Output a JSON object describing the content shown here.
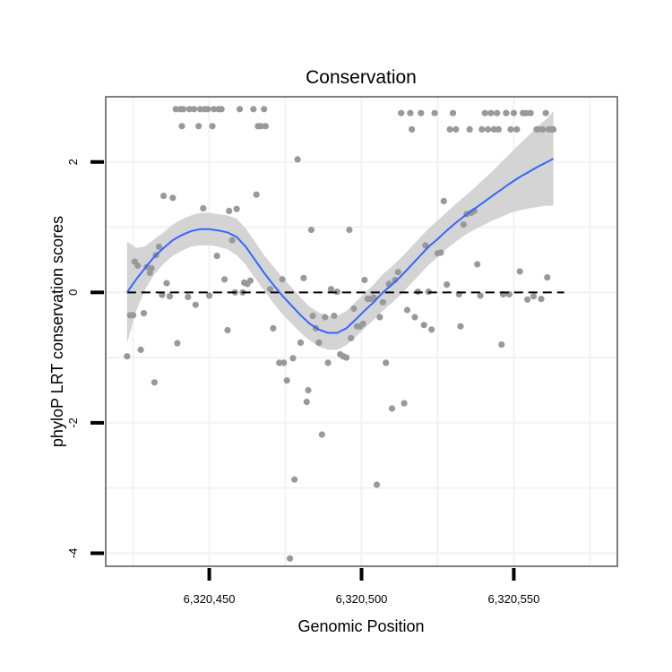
{
  "chart_data": {
    "type": "scatter",
    "title": "Conservation",
    "xlabel": "Genomic Position",
    "ylabel": "phyloP LRT conservation scores",
    "xlim": [
      6320416,
      6320584
    ],
    "ylim": [
      -4.2,
      3.0
    ],
    "x_ticks": [
      6320450,
      6320500,
      6320550
    ],
    "x_tick_labels": [
      "6,320,450",
      "6,320,500",
      "6,320,550"
    ],
    "y_ticks": [
      -4,
      -2,
      0,
      2
    ],
    "y_tick_labels": [
      "-4",
      "-2",
      "0",
      "2"
    ],
    "reference_line": {
      "y": 0,
      "style": "dashed"
    },
    "grid": true,
    "colors": {
      "points": "#999999",
      "smooth_line": "#3366ff",
      "confidence_band": "#d4d4d4",
      "frame": "#7f7f7f",
      "grid": "#f2f2f2"
    },
    "points": [
      {
        "x": 6320423,
        "y": -0.98
      },
      {
        "x": 6320424,
        "y": -0.35
      },
      {
        "x": 6320425,
        "y": -0.35
      },
      {
        "x": 6320425.5,
        "y": 0.47
      },
      {
        "x": 6320426.5,
        "y": 0.41
      },
      {
        "x": 6320427.5,
        "y": -0.88
      },
      {
        "x": 6320428.5,
        "y": -0.32
      },
      {
        "x": 6320429.5,
        "y": 0.39
      },
      {
        "x": 6320430.5,
        "y": 0.3
      },
      {
        "x": 6320431,
        "y": 0.37
      },
      {
        "x": 6320432,
        "y": -1.38
      },
      {
        "x": 6320432.5,
        "y": 0.57
      },
      {
        "x": 6320433.5,
        "y": 0.7
      },
      {
        "x": 6320434.5,
        "y": -0.04
      },
      {
        "x": 6320435,
        "y": 1.48
      },
      {
        "x": 6320436,
        "y": 0.14
      },
      {
        "x": 6320437,
        "y": -0.06
      },
      {
        "x": 6320438,
        "y": 1.45
      },
      {
        "x": 6320439,
        "y": 2.81
      },
      {
        "x": 6320439.5,
        "y": -0.78
      },
      {
        "x": 6320440.5,
        "y": 2.81
      },
      {
        "x": 6320441,
        "y": 2.55
      },
      {
        "x": 6320441.5,
        "y": 2.81
      },
      {
        "x": 6320443,
        "y": -0.07
      },
      {
        "x": 6320443.5,
        "y": 2.81
      },
      {
        "x": 6320445,
        "y": 2.81
      },
      {
        "x": 6320445.5,
        "y": -0.19
      },
      {
        "x": 6320446.5,
        "y": 2.55
      },
      {
        "x": 6320447,
        "y": 2.81
      },
      {
        "x": 6320448,
        "y": 1.29
      },
      {
        "x": 6320448.5,
        "y": 2.81
      },
      {
        "x": 6320449.5,
        "y": 2.81
      },
      {
        "x": 6320450,
        "y": -0.05
      },
      {
        "x": 6320451,
        "y": 2.55
      },
      {
        "x": 6320451.5,
        "y": 2.81
      },
      {
        "x": 6320452.5,
        "y": 0.56
      },
      {
        "x": 6320453,
        "y": 2.81
      },
      {
        "x": 6320454,
        "y": 2.81
      },
      {
        "x": 6320455,
        "y": 0.2
      },
      {
        "x": 6320456,
        "y": -0.58
      },
      {
        "x": 6320456.5,
        "y": 1.25
      },
      {
        "x": 6320457.5,
        "y": 0.8
      },
      {
        "x": 6320458.5,
        "y": 0.0
      },
      {
        "x": 6320459,
        "y": 1.28
      },
      {
        "x": 6320460,
        "y": 2.81
      },
      {
        "x": 6320461,
        "y": 0.0
      },
      {
        "x": 6320461.5,
        "y": 0.15
      },
      {
        "x": 6320462.5,
        "y": 0.13
      },
      {
        "x": 6320463.5,
        "y": 0.18
      },
      {
        "x": 6320464.5,
        "y": 2.81
      },
      {
        "x": 6320465.5,
        "y": 1.5
      },
      {
        "x": 6320466,
        "y": 2.55
      },
      {
        "x": 6320467,
        "y": 2.55
      },
      {
        "x": 6320468,
        "y": 2.81
      },
      {
        "x": 6320468.5,
        "y": 2.55
      },
      {
        "x": 6320470,
        "y": 0.05
      },
      {
        "x": 6320471,
        "y": -0.55
      },
      {
        "x": 6320473,
        "y": -1.08
      },
      {
        "x": 6320474,
        "y": 0.2
      },
      {
        "x": 6320474.5,
        "y": -1.08
      },
      {
        "x": 6320475.5,
        "y": -1.35
      },
      {
        "x": 6320476.5,
        "y": -4.08
      },
      {
        "x": 6320477.5,
        "y": -1.01
      },
      {
        "x": 6320478,
        "y": -2.87
      },
      {
        "x": 6320479,
        "y": 2.04
      },
      {
        "x": 6320480,
        "y": -0.77
      },
      {
        "x": 6320481,
        "y": 0.22
      },
      {
        "x": 6320482,
        "y": -1.68
      },
      {
        "x": 6320482.5,
        "y": -1.5
      },
      {
        "x": 6320483.5,
        "y": 0.96
      },
      {
        "x": 6320484,
        "y": -0.36
      },
      {
        "x": 6320485,
        "y": -0.55
      },
      {
        "x": 6320486,
        "y": -0.77
      },
      {
        "x": 6320487,
        "y": -2.18
      },
      {
        "x": 6320488,
        "y": -0.38
      },
      {
        "x": 6320489,
        "y": -1.08
      },
      {
        "x": 6320490,
        "y": 0.05
      },
      {
        "x": 6320491,
        "y": -0.36
      },
      {
        "x": 6320492,
        "y": 0.01
      },
      {
        "x": 6320493,
        "y": -0.95
      },
      {
        "x": 6320494,
        "y": -0.98
      },
      {
        "x": 6320495,
        "y": -1.0
      },
      {
        "x": 6320496,
        "y": 0.96
      },
      {
        "x": 6320496.5,
        "y": -0.7
      },
      {
        "x": 6320497.5,
        "y": -0.25
      },
      {
        "x": 6320498.5,
        "y": -0.52
      },
      {
        "x": 6320499.5,
        "y": -0.52
      },
      {
        "x": 6320500.5,
        "y": -0.48
      },
      {
        "x": 6320501,
        "y": 0.19
      },
      {
        "x": 6320502,
        "y": -0.1
      },
      {
        "x": 6320503,
        "y": -0.1
      },
      {
        "x": 6320504,
        "y": -0.08
      },
      {
        "x": 6320505,
        "y": -2.95
      },
      {
        "x": 6320506,
        "y": -0.38
      },
      {
        "x": 6320507,
        "y": -0.15
      },
      {
        "x": 6320508,
        "y": -1.08
      },
      {
        "x": 6320509,
        "y": 0.13
      },
      {
        "x": 6320510,
        "y": -1.78
      },
      {
        "x": 6320511,
        "y": 0.19
      },
      {
        "x": 6320512,
        "y": 0.31
      },
      {
        "x": 6320513,
        "y": 2.75
      },
      {
        "x": 6320514,
        "y": -1.7
      },
      {
        "x": 6320515,
        "y": -0.27
      },
      {
        "x": 6320516,
        "y": 2.75
      },
      {
        "x": 6320516.5,
        "y": 2.5
      },
      {
        "x": 6320517.5,
        "y": -0.38
      },
      {
        "x": 6320518.5,
        "y": 0.01
      },
      {
        "x": 6320519.5,
        "y": 2.75
      },
      {
        "x": 6320520.5,
        "y": -0.5
      },
      {
        "x": 6320521,
        "y": 0.72
      },
      {
        "x": 6320522,
        "y": 0.01
      },
      {
        "x": 6320523,
        "y": -0.57
      },
      {
        "x": 6320524,
        "y": 2.75
      },
      {
        "x": 6320525,
        "y": 0.6
      },
      {
        "x": 6320526,
        "y": 0.61
      },
      {
        "x": 6320527,
        "y": 1.4
      },
      {
        "x": 6320528,
        "y": 0.12
      },
      {
        "x": 6320529,
        "y": 2.5
      },
      {
        "x": 6320530,
        "y": 2.75
      },
      {
        "x": 6320531,
        "y": 2.5
      },
      {
        "x": 6320532,
        "y": -0.03
      },
      {
        "x": 6320532.5,
        "y": -0.52
      },
      {
        "x": 6320533.5,
        "y": 1.04
      },
      {
        "x": 6320534.5,
        "y": 1.2
      },
      {
        "x": 6320535.5,
        "y": 2.5
      },
      {
        "x": 6320536,
        "y": 1.22
      },
      {
        "x": 6320537,
        "y": 1.25
      },
      {
        "x": 6320538,
        "y": 0.43
      },
      {
        "x": 6320539,
        "y": -0.05
      },
      {
        "x": 6320539.5,
        "y": 2.5
      },
      {
        "x": 6320540.5,
        "y": 2.75
      },
      {
        "x": 6320541.5,
        "y": 2.5
      },
      {
        "x": 6320542.5,
        "y": 2.75
      },
      {
        "x": 6320543.5,
        "y": 2.5
      },
      {
        "x": 6320544.5,
        "y": 2.75
      },
      {
        "x": 6320545,
        "y": 2.5
      },
      {
        "x": 6320546,
        "y": -0.8
      },
      {
        "x": 6320546.5,
        "y": -0.03
      },
      {
        "x": 6320547.5,
        "y": 2.75
      },
      {
        "x": 6320548.5,
        "y": -0.03
      },
      {
        "x": 6320549,
        "y": 2.5
      },
      {
        "x": 6320550,
        "y": 2.75
      },
      {
        "x": 6320551,
        "y": 2.5
      },
      {
        "x": 6320552,
        "y": 0.32
      },
      {
        "x": 6320553,
        "y": 2.75
      },
      {
        "x": 6320554,
        "y": 2.75
      },
      {
        "x": 6320554.5,
        "y": -0.11
      },
      {
        "x": 6320555.5,
        "y": 2.75
      },
      {
        "x": 6320556.5,
        "y": -0.06
      },
      {
        "x": 6320557.5,
        "y": 2.5
      },
      {
        "x": 6320558,
        "y": 2.5
      },
      {
        "x": 6320559,
        "y": -0.1
      },
      {
        "x": 6320559.5,
        "y": 2.5
      },
      {
        "x": 6320560.5,
        "y": 2.75
      },
      {
        "x": 6320561,
        "y": 0.23
      },
      {
        "x": 6320561.5,
        "y": 2.5
      },
      {
        "x": 6320562.5,
        "y": 2.5
      },
      {
        "x": 6320563,
        "y": 2.5
      }
    ],
    "smooth": {
      "x": [
        6320423,
        6320426,
        6320429,
        6320432,
        6320435,
        6320438,
        6320441,
        6320444,
        6320447,
        6320450,
        6320453,
        6320456,
        6320459,
        6320462,
        6320465,
        6320468,
        6320471,
        6320474,
        6320477,
        6320480,
        6320483,
        6320486,
        6320489,
        6320492,
        6320495,
        6320498,
        6320501,
        6320504,
        6320507,
        6320510,
        6320513,
        6320516,
        6320519,
        6320522,
        6320525,
        6320528,
        6320531,
        6320534,
        6320537,
        6320540,
        6320543,
        6320546,
        6320549,
        6320552,
        6320555,
        6320558,
        6320561,
        6320563
      ],
      "y": [
        0.0,
        0.2,
        0.38,
        0.55,
        0.68,
        0.8,
        0.88,
        0.94,
        0.97,
        0.97,
        0.95,
        0.92,
        0.85,
        0.7,
        0.5,
        0.3,
        0.12,
        -0.05,
        -0.2,
        -0.35,
        -0.48,
        -0.57,
        -0.62,
        -0.62,
        -0.55,
        -0.42,
        -0.28,
        -0.15,
        0.0,
        0.12,
        0.25,
        0.4,
        0.55,
        0.7,
        0.82,
        0.95,
        1.07,
        1.18,
        1.28,
        1.38,
        1.48,
        1.58,
        1.68,
        1.77,
        1.85,
        1.93,
        2.0,
        2.05
      ],
      "lower": [
        -0.78,
        -0.28,
        0.05,
        0.28,
        0.44,
        0.56,
        0.64,
        0.7,
        0.72,
        0.72,
        0.7,
        0.66,
        0.57,
        0.42,
        0.22,
        0.03,
        -0.16,
        -0.33,
        -0.48,
        -0.62,
        -0.74,
        -0.83,
        -0.88,
        -0.88,
        -0.81,
        -0.69,
        -0.55,
        -0.42,
        -0.28,
        -0.16,
        -0.03,
        0.12,
        0.27,
        0.42,
        0.54,
        0.67,
        0.78,
        0.88,
        0.96,
        1.03,
        1.1,
        1.16,
        1.22,
        1.26,
        1.29,
        1.31,
        1.33,
        1.33
      ],
      "upper": [
        0.78,
        0.68,
        0.71,
        0.82,
        0.92,
        1.04,
        1.12,
        1.18,
        1.22,
        1.22,
        1.2,
        1.18,
        1.13,
        0.98,
        0.78,
        0.57,
        0.4,
        0.23,
        0.08,
        -0.08,
        -0.22,
        -0.31,
        -0.36,
        -0.36,
        -0.29,
        -0.15,
        -0.01,
        0.12,
        0.28,
        0.4,
        0.53,
        0.68,
        0.83,
        0.98,
        1.1,
        1.23,
        1.36,
        1.48,
        1.6,
        1.73,
        1.86,
        2.0,
        2.14,
        2.28,
        2.41,
        2.55,
        2.67,
        2.78
      ]
    }
  }
}
